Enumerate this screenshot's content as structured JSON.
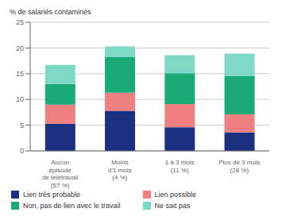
{
  "chart_data": {
    "type": "bar",
    "stacked": true,
    "y_label": "% de salariés contaminés",
    "categories": [
      "Aucun\népisode\nde télétravail\n(57 %)",
      "Moins\nd'1 mois\n(4 %)",
      "1 à 3 mois\n(11 %)",
      "Plus de 3 mois\n(28 %)"
    ],
    "series": [
      {
        "name": "Lien très probable",
        "color": "#1b3080",
        "values": [
          5.3,
          7.8,
          4.6,
          3.6
        ]
      },
      {
        "name": "Lien possible",
        "color": "#f08080",
        "values": [
          3.7,
          3.5,
          4.5,
          3.5
        ]
      },
      {
        "name": "Non, pas de lien avec le travail",
        "color": "#1aaa78",
        "values": [
          4.0,
          7.0,
          6.0,
          7.5
        ]
      },
      {
        "name": "Ne sait pas",
        "color": "#7dd8c6",
        "values": [
          3.7,
          2.0,
          3.5,
          4.3
        ]
      }
    ],
    "ylim": [
      0,
      25
    ],
    "yticks": [
      0,
      5,
      10,
      15,
      20,
      25
    ],
    "grid": true,
    "legend": "bottom"
  }
}
